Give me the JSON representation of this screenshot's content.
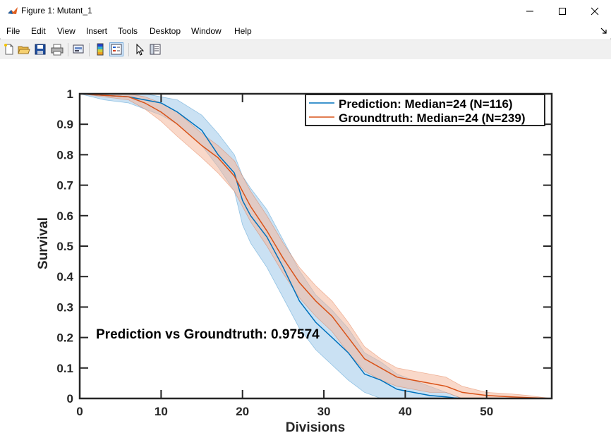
{
  "window": {
    "title": "Figure 1: Mutant_1"
  },
  "menu": [
    "File",
    "Edit",
    "View",
    "Insert",
    "Tools",
    "Desktop",
    "Window",
    "Help"
  ],
  "toolbar_icons": [
    "new-figure-icon",
    "open-file-icon",
    "save-icon",
    "print-icon",
    "link-plot-icon",
    "colorbar-icon",
    "legend-icon",
    "pointer-icon",
    "property-inspector-icon"
  ],
  "colors": {
    "prediction": "#0072bd",
    "groundtruth": "#d95319",
    "prediction_fill": "#9ec9ea",
    "groundtruth_fill": "#f4b89c"
  },
  "chart_data": {
    "type": "line",
    "xlabel": "Divisions",
    "ylabel": "Survival",
    "xlim": [
      0,
      58
    ],
    "ylim": [
      0,
      1
    ],
    "xticks": [
      0,
      10,
      20,
      30,
      40,
      50
    ],
    "xtick_labels": [
      "0",
      "10",
      "20",
      "30",
      "40",
      "50"
    ],
    "yticks": [
      0,
      0.1,
      0.2,
      0.3,
      0.4,
      0.5,
      0.6,
      0.7,
      0.8,
      0.9,
      1
    ],
    "ytick_labels": [
      "0",
      "0.1",
      "0.2",
      "0.3",
      "0.4",
      "0.5",
      "0.6",
      "0.7",
      "0.8",
      "0.9",
      "1"
    ],
    "annotation": "Prediction vs Groundtruth: 0.97574",
    "legend_position": "top-right",
    "series": [
      {
        "name": "Prediction: Median=24 (N=116)",
        "color": "#0072bd",
        "x": [
          0,
          3,
          6,
          8,
          10,
          12,
          15,
          17,
          19,
          20,
          21,
          23,
          25,
          27,
          29,
          31,
          33,
          35,
          37,
          39,
          41,
          43,
          45,
          46,
          47
        ],
        "y": [
          1.0,
          0.995,
          0.99,
          0.98,
          0.97,
          0.94,
          0.88,
          0.8,
          0.74,
          0.65,
          0.6,
          0.53,
          0.43,
          0.32,
          0.25,
          0.2,
          0.15,
          0.08,
          0.06,
          0.03,
          0.02,
          0.01,
          0.005,
          0.002,
          0.0
        ],
        "lower": [
          1.0,
          0.98,
          0.97,
          0.95,
          0.93,
          0.9,
          0.83,
          0.76,
          0.68,
          0.57,
          0.51,
          0.43,
          0.33,
          0.23,
          0.16,
          0.11,
          0.06,
          0.02,
          0.0,
          0.0,
          0.0,
          0.0,
          0.0,
          0.0,
          0.0
        ],
        "upper": [
          1.0,
          1.0,
          1.0,
          1.0,
          0.99,
          0.98,
          0.93,
          0.87,
          0.8,
          0.73,
          0.69,
          0.62,
          0.52,
          0.42,
          0.34,
          0.29,
          0.23,
          0.15,
          0.12,
          0.08,
          0.06,
          0.04,
          0.02,
          0.01,
          0.0
        ]
      },
      {
        "name": "Groundtruth: Median=24 (N=239)",
        "color": "#d95319",
        "x": [
          0,
          3,
          6,
          8,
          10,
          12,
          15,
          17,
          19,
          20,
          21,
          23,
          25,
          27,
          29,
          31,
          33,
          35,
          37,
          39,
          41,
          43,
          45,
          47,
          50,
          53,
          55,
          58
        ],
        "y": [
          1.0,
          0.995,
          0.99,
          0.97,
          0.94,
          0.9,
          0.83,
          0.79,
          0.73,
          0.68,
          0.63,
          0.55,
          0.46,
          0.38,
          0.32,
          0.27,
          0.2,
          0.13,
          0.1,
          0.07,
          0.06,
          0.05,
          0.04,
          0.02,
          0.01,
          0.005,
          0.003,
          0.0
        ],
        "lower": [
          1.0,
          0.99,
          0.98,
          0.95,
          0.91,
          0.86,
          0.79,
          0.74,
          0.68,
          0.63,
          0.58,
          0.5,
          0.41,
          0.33,
          0.27,
          0.22,
          0.15,
          0.09,
          0.06,
          0.04,
          0.03,
          0.02,
          0.02,
          0.0,
          0.0,
          0.0,
          0.0,
          0.0
        ],
        "upper": [
          1.0,
          1.0,
          1.0,
          0.99,
          0.97,
          0.94,
          0.87,
          0.83,
          0.78,
          0.73,
          0.68,
          0.6,
          0.51,
          0.43,
          0.37,
          0.32,
          0.25,
          0.17,
          0.13,
          0.1,
          0.09,
          0.08,
          0.07,
          0.04,
          0.02,
          0.015,
          0.01,
          0.0
        ]
      }
    ]
  }
}
